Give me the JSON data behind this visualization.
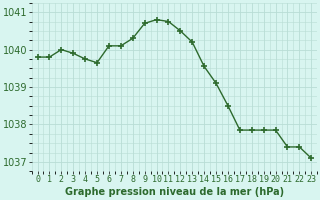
{
  "hours": [
    0,
    1,
    2,
    3,
    4,
    5,
    6,
    7,
    8,
    9,
    10,
    11,
    12,
    13,
    14,
    15,
    16,
    17,
    18,
    19,
    20,
    21,
    22,
    23
  ],
  "pressure": [
    1039.8,
    1039.8,
    1040.0,
    1039.9,
    1039.75,
    1039.65,
    1040.1,
    1040.1,
    1040.3,
    1040.7,
    1040.8,
    1040.75,
    1040.5,
    1040.2,
    1039.55,
    1039.1,
    1038.5,
    1037.85,
    1037.85,
    1037.85,
    1037.85,
    1037.4,
    1037.4,
    1037.1
  ],
  "line_color": "#2d6a2d",
  "marker": "+",
  "marker_size": 4,
  "bg_color": "#d8f5f0",
  "grid_color": "#b8ddd5",
  "xlabel": "Graphe pression niveau de la mer (hPa)",
  "ylim": [
    1036.75,
    1041.25
  ],
  "yticks": [
    1037,
    1038,
    1039,
    1040,
    1041
  ],
  "xtick_labels": [
    "0",
    "1",
    "2",
    "3",
    "4",
    "5",
    "6",
    "7",
    "8",
    "9",
    "10",
    "11",
    "12",
    "13",
    "14",
    "15",
    "16",
    "17",
    "18",
    "19",
    "20",
    "21",
    "22",
    "23"
  ],
  "xlabel_fontsize": 7,
  "tick_fontsize": 7,
  "line_width": 1.0,
  "marker_linewidth": 1.2
}
